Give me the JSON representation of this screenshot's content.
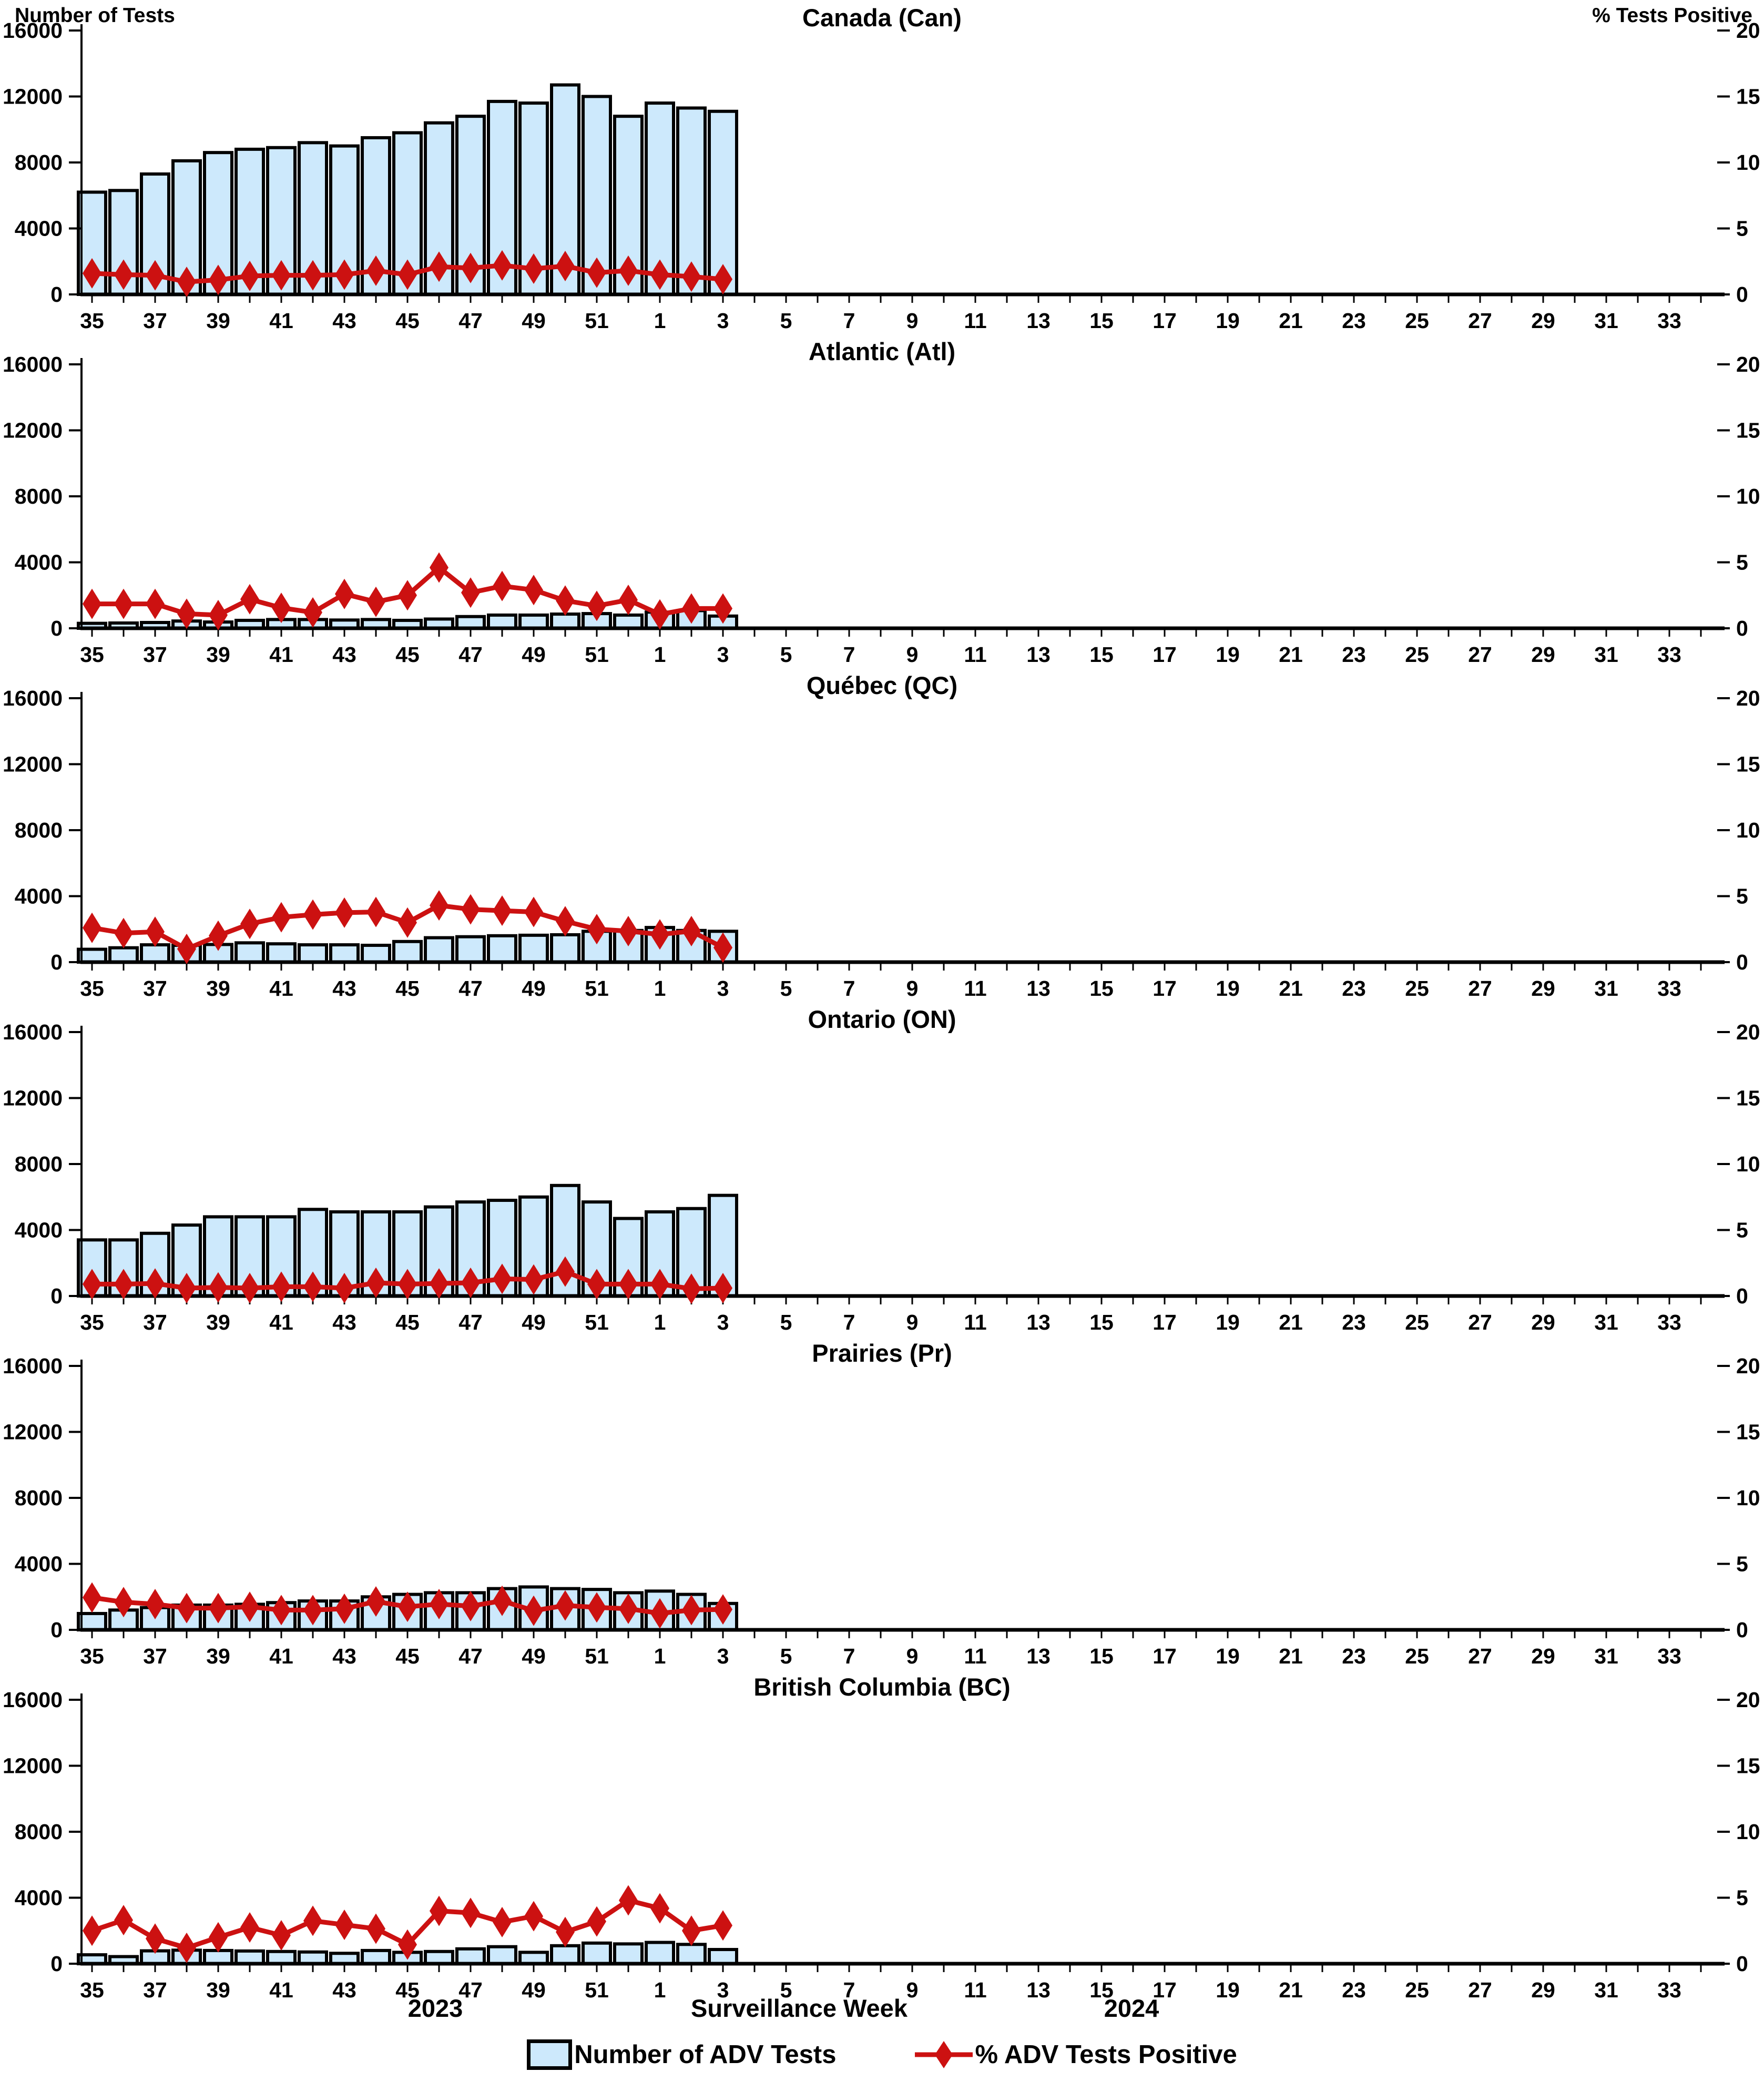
{
  "header": {
    "left_axis_title": "Number of Tests",
    "right_axis_title": "% Tests Positive"
  },
  "colors": {
    "bar_fill": "#CDE9FC",
    "bar_stroke": "#000000",
    "line": "#CC1111"
  },
  "left_axis": {
    "min": 0,
    "max": 16000,
    "ticks": [
      0,
      4000,
      8000,
      12000,
      16000
    ]
  },
  "right_axis": {
    "min": 0,
    "max": 20,
    "ticks": [
      0,
      5,
      10,
      15,
      20
    ]
  },
  "x_axis": {
    "title": "Surveillance Week",
    "year_left": "2023",
    "year_right": "2024",
    "weeks_total": 52,
    "week_labels": [
      "35",
      "37",
      "39",
      "41",
      "43",
      "45",
      "47",
      "49",
      "51",
      "1",
      "3",
      "5",
      "7",
      "9",
      "11",
      "13",
      "15",
      "17",
      "19",
      "21",
      "23",
      "25",
      "27",
      "29",
      "31",
      "33"
    ]
  },
  "legend": [
    {
      "label": "Number of ADV Tests",
      "type": "bar-swatch"
    },
    {
      "label": "% ADV Tests Positive",
      "type": "line-marker"
    }
  ],
  "chart_data": [
    {
      "type": "bar+line",
      "title": "Canada (Can)",
      "ylabel_left": "Number of Tests",
      "ylabel_right": "% Tests Positive",
      "ylim_left": [
        0,
        16000
      ],
      "ylim_right": [
        0,
        20
      ],
      "categories": [
        "35",
        "36",
        "37",
        "38",
        "39",
        "40",
        "41",
        "42",
        "43",
        "44",
        "45",
        "46",
        "47",
        "48",
        "49",
        "50",
        "51",
        "52",
        "1",
        "2",
        "3"
      ],
      "tests": [
        6200,
        6300,
        7300,
        8100,
        8600,
        8800,
        8900,
        9200,
        9000,
        9500,
        9800,
        10400,
        10800,
        11700,
        11600,
        12700,
        12000,
        10800,
        11600,
        11300,
        11100
      ],
      "pct_positive": [
        1.6,
        1.5,
        1.45,
        0.95,
        1.1,
        1.4,
        1.45,
        1.45,
        1.5,
        1.8,
        1.5,
        2.1,
        2.0,
        2.2,
        1.95,
        2.15,
        1.65,
        1.8,
        1.5,
        1.35,
        1.15
      ]
    },
    {
      "type": "bar+line",
      "title": "Atlantic (Atl)",
      "ylim_left": [
        0,
        16000
      ],
      "ylim_right": [
        0,
        20
      ],
      "categories": [
        "35",
        "36",
        "37",
        "38",
        "39",
        "40",
        "41",
        "42",
        "43",
        "44",
        "45",
        "46",
        "47",
        "48",
        "49",
        "50",
        "51",
        "52",
        "1",
        "2",
        "3"
      ],
      "tests": [
        300,
        320,
        350,
        440,
        380,
        480,
        530,
        530,
        500,
        530,
        480,
        560,
        710,
        800,
        800,
        860,
        890,
        800,
        980,
        1070,
        740
      ],
      "pct_positive": [
        1.85,
        1.85,
        1.85,
        1.1,
        1.0,
        2.2,
        1.55,
        1.2,
        2.6,
        2.0,
        2.5,
        4.6,
        2.7,
        3.2,
        2.9,
        2.1,
        1.7,
        2.15,
        1.05,
        1.5,
        1.5
      ]
    },
    {
      "type": "bar+line",
      "title": "Québec (QC)",
      "ylim_left": [
        0,
        16000
      ],
      "ylim_right": [
        0,
        20
      ],
      "categories": [
        "35",
        "36",
        "37",
        "38",
        "39",
        "40",
        "41",
        "42",
        "43",
        "44",
        "45",
        "46",
        "47",
        "48",
        "49",
        "50",
        "51",
        "52",
        "1",
        "2",
        "3"
      ],
      "tests": [
        780,
        870,
        1050,
        1020,
        1070,
        1170,
        1110,
        1050,
        1050,
        1020,
        1250,
        1480,
        1540,
        1600,
        1630,
        1660,
        1870,
        1920,
        2100,
        1920,
        1870
      ],
      "pct_positive": [
        2.6,
        2.2,
        2.3,
        1.0,
        2.0,
        2.9,
        3.4,
        3.6,
        3.75,
        3.8,
        3.0,
        4.3,
        4.0,
        3.9,
        3.8,
        3.1,
        2.5,
        2.35,
        2.1,
        2.35,
        1.1
      ]
    },
    {
      "type": "bar+line",
      "title": "Ontario (ON)",
      "ylim_left": [
        0,
        16000
      ],
      "ylim_right": [
        0,
        20
      ],
      "categories": [
        "35",
        "36",
        "37",
        "38",
        "39",
        "40",
        "41",
        "42",
        "43",
        "44",
        "45",
        "46",
        "47",
        "48",
        "49",
        "50",
        "51",
        "52",
        "1",
        "2",
        "3"
      ],
      "tests": [
        3400,
        3400,
        3800,
        4300,
        4800,
        4800,
        4800,
        5250,
        5100,
        5100,
        5100,
        5400,
        5700,
        5800,
        6000,
        6700,
        5700,
        4700,
        5100,
        5300,
        6100
      ],
      "pct_positive": [
        0.9,
        0.9,
        0.95,
        0.6,
        0.65,
        0.6,
        0.7,
        0.7,
        0.6,
        1.0,
        0.9,
        0.95,
        1.0,
        1.3,
        1.25,
        1.85,
        0.9,
        0.9,
        0.9,
        0.55,
        0.6
      ]
    },
    {
      "type": "bar+line",
      "title": "Prairies (Pr)",
      "ylim_left": [
        0,
        16000
      ],
      "ylim_right": [
        0,
        20
      ],
      "categories": [
        "35",
        "36",
        "37",
        "38",
        "39",
        "40",
        "41",
        "42",
        "43",
        "44",
        "45",
        "46",
        "47",
        "48",
        "49",
        "50",
        "51",
        "52",
        "1",
        "2",
        "3"
      ],
      "tests": [
        990,
        1200,
        1350,
        1500,
        1500,
        1550,
        1650,
        1750,
        1750,
        2000,
        2150,
        2250,
        2250,
        2500,
        2600,
        2500,
        2450,
        2250,
        2350,
        2150,
        1600
      ],
      "pct_positive": [
        2.45,
        2.1,
        1.95,
        1.65,
        1.65,
        1.75,
        1.5,
        1.5,
        1.6,
        2.15,
        1.75,
        1.95,
        1.8,
        2.2,
        1.45,
        1.85,
        1.7,
        1.6,
        1.25,
        1.5,
        1.55
      ]
    },
    {
      "type": "bar+line",
      "title": "British Columbia (BC)",
      "ylim_left": [
        0,
        16000
      ],
      "ylim_right": [
        0,
        20
      ],
      "categories": [
        "35",
        "36",
        "37",
        "38",
        "39",
        "40",
        "41",
        "42",
        "43",
        "44",
        "45",
        "46",
        "47",
        "48",
        "49",
        "50",
        "51",
        "52",
        "1",
        "2",
        "3"
      ],
      "tests": [
        540,
        430,
        780,
        820,
        800,
        770,
        740,
        710,
        630,
        800,
        690,
        740,
        900,
        1030,
        690,
        1090,
        1250,
        1200,
        1290,
        1170,
        860
      ],
      "pct_positive": [
        2.5,
        3.3,
        1.9,
        1.2,
        2.0,
        2.75,
        2.15,
        3.25,
        2.95,
        2.65,
        1.45,
        4.0,
        3.85,
        3.15,
        3.6,
        2.4,
        3.2,
        4.8,
        4.2,
        2.5,
        2.9
      ]
    }
  ]
}
